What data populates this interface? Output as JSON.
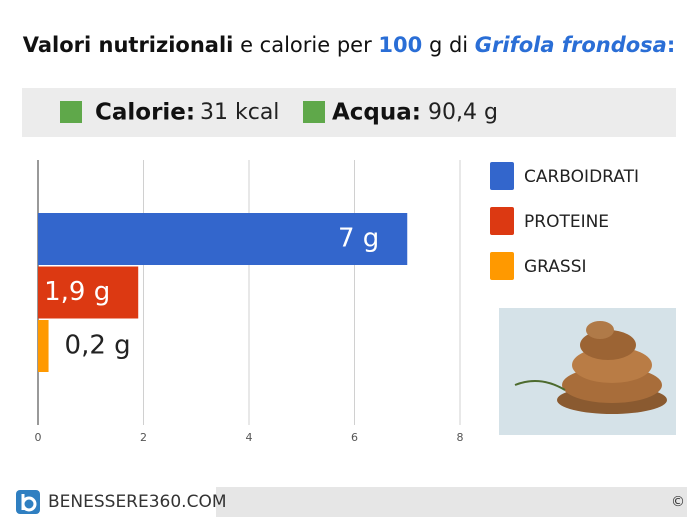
{
  "header": {
    "title_parts": [
      "Valori nutrizionali",
      "e calorie per",
      "100",
      "g di",
      "Grifola frondosa",
      ":"
    ]
  },
  "info": {
    "calorie_label": "Calorie:",
    "calorie_value": "31 kcal",
    "acqua_label": "Acqua:",
    "acqua_value": "90,4 g"
  },
  "chart_data": {
    "type": "bar",
    "orientation": "horizontal",
    "categories": [
      "CARBOIDRATI",
      "PROTEINE",
      "GRASSI"
    ],
    "values": [
      7,
      1.9,
      0.2
    ],
    "value_labels": [
      "7 g",
      "1,9 g",
      "0,2 g"
    ],
    "colors": [
      "#3366cc",
      "#dc3912",
      "#ff9900"
    ],
    "xlim": [
      0,
      8
    ],
    "xticks": [
      0,
      2,
      4,
      6,
      8
    ],
    "grid": true,
    "legend": "right"
  },
  "footer": {
    "brand": "BENESSERE360.COM",
    "copyright": "©"
  }
}
